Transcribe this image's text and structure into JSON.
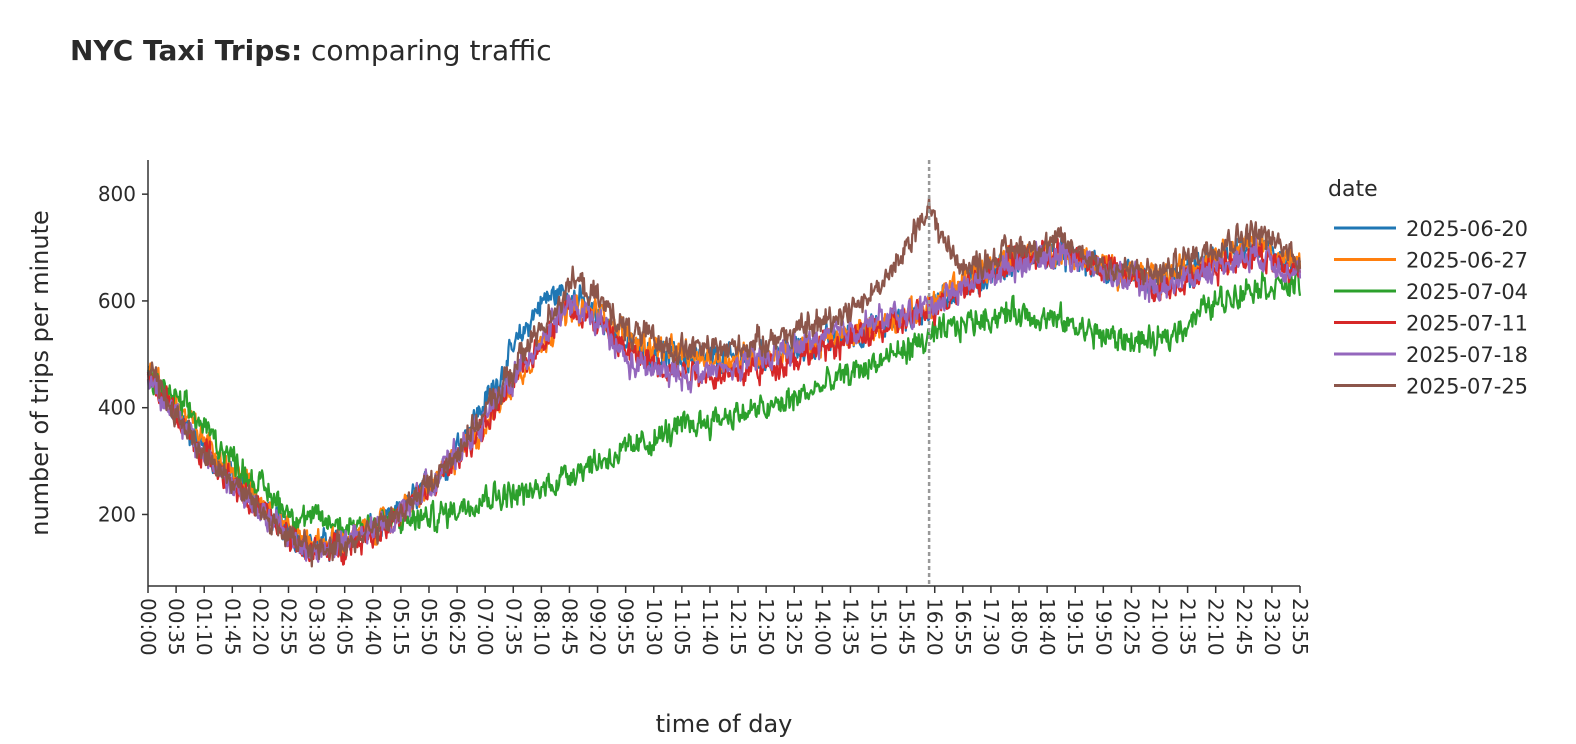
{
  "chart_data": {
    "type": "line",
    "title_bold": "NYC Taxi Trips:",
    "title_rest": " comparing traffic",
    "xlabel": "time of day",
    "ylabel": "number of trips per minute",
    "x_unit": "minutes since midnight",
    "xlim": [
      0,
      1435
    ],
    "ylim": [
      66,
      864
    ],
    "x_tick_step_minutes": 35,
    "y_ticks": [
      200,
      400,
      600,
      800
    ],
    "hover_line_minute": 973,
    "legend": {
      "title": "date",
      "placement": "right"
    },
    "noise_amplitude": 22,
    "series": [
      {
        "name": "2025-06-20",
        "color": "#1f77b4",
        "points": [
          [
            0,
            460
          ],
          [
            60,
            340
          ],
          [
            120,
            245
          ],
          [
            180,
            160
          ],
          [
            210,
            140
          ],
          [
            240,
            150
          ],
          [
            300,
            185
          ],
          [
            360,
            270
          ],
          [
            420,
            410
          ],
          [
            460,
            520
          ],
          [
            490,
            600
          ],
          [
            520,
            620
          ],
          [
            560,
            570
          ],
          [
            600,
            510
          ],
          [
            660,
            490
          ],
          [
            720,
            490
          ],
          [
            780,
            500
          ],
          [
            840,
            520
          ],
          [
            900,
            545
          ],
          [
            960,
            575
          ],
          [
            1020,
            630
          ],
          [
            1080,
            670
          ],
          [
            1140,
            690
          ],
          [
            1200,
            650
          ],
          [
            1260,
            630
          ],
          [
            1320,
            670
          ],
          [
            1380,
            700
          ],
          [
            1435,
            670
          ]
        ]
      },
      {
        "name": "2025-06-27",
        "color": "#ff7f0e",
        "points": [
          [
            0,
            470
          ],
          [
            60,
            360
          ],
          [
            120,
            260
          ],
          [
            180,
            170
          ],
          [
            210,
            145
          ],
          [
            240,
            150
          ],
          [
            300,
            185
          ],
          [
            360,
            265
          ],
          [
            420,
            370
          ],
          [
            480,
            500
          ],
          [
            520,
            580
          ],
          [
            560,
            580
          ],
          [
            600,
            530
          ],
          [
            660,
            500
          ],
          [
            720,
            490
          ],
          [
            780,
            500
          ],
          [
            840,
            520
          ],
          [
            900,
            550
          ],
          [
            960,
            580
          ],
          [
            1020,
            640
          ],
          [
            1080,
            690
          ],
          [
            1140,
            690
          ],
          [
            1200,
            660
          ],
          [
            1260,
            640
          ],
          [
            1320,
            680
          ],
          [
            1380,
            710
          ],
          [
            1435,
            660
          ]
        ]
      },
      {
        "name": "2025-07-04",
        "color": "#2ca02c",
        "points": [
          [
            0,
            460
          ],
          [
            60,
            380
          ],
          [
            120,
            280
          ],
          [
            180,
            200
          ],
          [
            240,
            180
          ],
          [
            300,
            185
          ],
          [
            360,
            195
          ],
          [
            420,
            235
          ],
          [
            480,
            240
          ],
          [
            540,
            290
          ],
          [
            600,
            320
          ],
          [
            660,
            360
          ],
          [
            720,
            385
          ],
          [
            780,
            400
          ],
          [
            840,
            440
          ],
          [
            900,
            480
          ],
          [
            960,
            520
          ],
          [
            1020,
            560
          ],
          [
            1080,
            580
          ],
          [
            1140,
            560
          ],
          [
            1200,
            530
          ],
          [
            1260,
            520
          ],
          [
            1320,
            590
          ],
          [
            1380,
            630
          ],
          [
            1435,
            630
          ]
        ]
      },
      {
        "name": "2025-07-11",
        "color": "#d62728",
        "points": [
          [
            0,
            460
          ],
          [
            60,
            330
          ],
          [
            120,
            235
          ],
          [
            180,
            150
          ],
          [
            210,
            130
          ],
          [
            240,
            140
          ],
          [
            300,
            180
          ],
          [
            360,
            260
          ],
          [
            420,
            370
          ],
          [
            480,
            500
          ],
          [
            520,
            590
          ],
          [
            560,
            560
          ],
          [
            600,
            500
          ],
          [
            660,
            470
          ],
          [
            720,
            460
          ],
          [
            780,
            480
          ],
          [
            840,
            510
          ],
          [
            900,
            540
          ],
          [
            960,
            570
          ],
          [
            1020,
            630
          ],
          [
            1080,
            680
          ],
          [
            1140,
            690
          ],
          [
            1200,
            660
          ],
          [
            1260,
            620
          ],
          [
            1320,
            660
          ],
          [
            1380,
            690
          ],
          [
            1435,
            650
          ]
        ]
      },
      {
        "name": "2025-07-18",
        "color": "#9467bd",
        "points": [
          [
            0,
            460
          ],
          [
            60,
            330
          ],
          [
            120,
            230
          ],
          [
            180,
            150
          ],
          [
            210,
            130
          ],
          [
            240,
            145
          ],
          [
            300,
            185
          ],
          [
            360,
            270
          ],
          [
            420,
            380
          ],
          [
            480,
            510
          ],
          [
            520,
            590
          ],
          [
            560,
            560
          ],
          [
            600,
            480
          ],
          [
            660,
            460
          ],
          [
            720,
            470
          ],
          [
            780,
            500
          ],
          [
            840,
            530
          ],
          [
            900,
            560
          ],
          [
            960,
            580
          ],
          [
            1020,
            630
          ],
          [
            1080,
            670
          ],
          [
            1140,
            690
          ],
          [
            1200,
            650
          ],
          [
            1260,
            620
          ],
          [
            1320,
            660
          ],
          [
            1380,
            690
          ],
          [
            1435,
            650
          ]
        ]
      },
      {
        "name": "2025-07-25",
        "color": "#8c564b",
        "points": [
          [
            0,
            470
          ],
          [
            60,
            330
          ],
          [
            120,
            240
          ],
          [
            180,
            150
          ],
          [
            210,
            130
          ],
          [
            240,
            145
          ],
          [
            300,
            185
          ],
          [
            360,
            270
          ],
          [
            420,
            390
          ],
          [
            480,
            530
          ],
          [
            530,
            640
          ],
          [
            570,
            590
          ],
          [
            600,
            540
          ],
          [
            660,
            510
          ],
          [
            720,
            510
          ],
          [
            780,
            530
          ],
          [
            840,
            560
          ],
          [
            900,
            610
          ],
          [
            940,
            680
          ],
          [
            970,
            780
          ],
          [
            1000,
            690
          ],
          [
            1020,
            660
          ],
          [
            1080,
            700
          ],
          [
            1140,
            710
          ],
          [
            1200,
            660
          ],
          [
            1260,
            650
          ],
          [
            1320,
            700
          ],
          [
            1380,
            730
          ],
          [
            1435,
            680
          ]
        ]
      }
    ]
  }
}
